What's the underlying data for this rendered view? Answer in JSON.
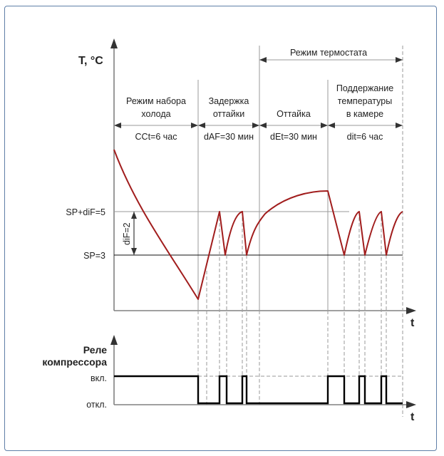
{
  "top_chart": {
    "y_axis_label": "T, °C",
    "x_axis_label": "t",
    "thermostat_mode_label": "Режим термостата",
    "phases": [
      {
        "name": "Режим набора\nхолода",
        "param": "CCt=6 час"
      },
      {
        "name": "Задержка\nоттайки",
        "param": "dAF=30 мин"
      },
      {
        "name": "Оттайка",
        "param": "dEt=30 мин"
      },
      {
        "name": "Поддержание\nтемпературы\nв камере",
        "param": "dit=6 час"
      }
    ],
    "levels": [
      {
        "label": "SP+diF=5",
        "value": 5
      },
      {
        "label": "SP=3",
        "value": 3
      }
    ],
    "hysteresis_label": "diF=2"
  },
  "bottom_chart": {
    "y_axis_label": "Реле\nкомпрессора",
    "x_axis_label": "t",
    "state_on": "вкл.",
    "state_off": "откл."
  },
  "colors": {
    "temperature_curve": "#a11d1d",
    "relay_signal": "#000000",
    "frame": "#5f7fa8"
  }
}
